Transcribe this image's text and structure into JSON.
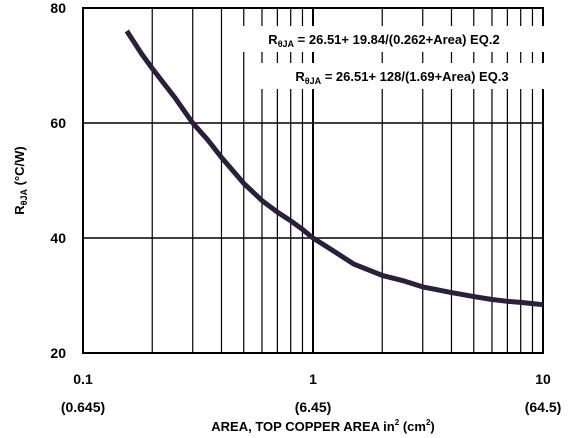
{
  "chart_data": {
    "type": "line",
    "x_scale": "log",
    "xlim": [
      0.1,
      10
    ],
    "ylim": [
      20,
      80
    ],
    "grid": true,
    "x_ticks": [
      {
        "value": 0.1,
        "label": "0.1",
        "sublabel": "(0.645)"
      },
      {
        "value": 1,
        "label": "1",
        "sublabel": "(6.45)"
      },
      {
        "value": 10,
        "label": "10",
        "sublabel": "(64.5)"
      }
    ],
    "y_ticks": [
      {
        "value": 20,
        "label": "20"
      },
      {
        "value": 40,
        "label": "40"
      },
      {
        "value": 60,
        "label": "60"
      },
      {
        "value": 80,
        "label": "80"
      }
    ],
    "xlabel": {
      "main": "AREA, TOP COPPER AREA in",
      "sup1": "2",
      "middle": " (cm",
      "sup2": "2",
      "end": ")"
    },
    "ylabel": {
      "main": "R",
      "sub": "θJA",
      "rest": " (°C/W)"
    },
    "annotations": [
      {
        "prefix": "R",
        "sub": "θJA",
        "text": " = 26.51+ 19.84/(0.262+Area) EQ.2"
      },
      {
        "prefix": "R",
        "sub": "θJA",
        "text": " = 26.51+ 128/(1.69+Area) EQ.3"
      }
    ],
    "series": [
      {
        "x": [
          0.155,
          0.18,
          0.2,
          0.25,
          0.3,
          0.35,
          0.4,
          0.5,
          0.6,
          0.7,
          0.8,
          0.9,
          1.0,
          1.2,
          1.5,
          2,
          2.5,
          3,
          4,
          5,
          6,
          7,
          8,
          9,
          10
        ],
        "y": [
          76.0,
          72.0,
          69.5,
          64.5,
          60.0,
          57.0,
          54.0,
          49.5,
          46.5,
          44.5,
          43.0,
          41.5,
          40.0,
          38.0,
          35.5,
          33.5,
          32.5,
          31.5,
          30.5,
          29.8,
          29.3,
          29.0,
          28.8,
          28.6,
          28.4
        ]
      }
    ]
  }
}
